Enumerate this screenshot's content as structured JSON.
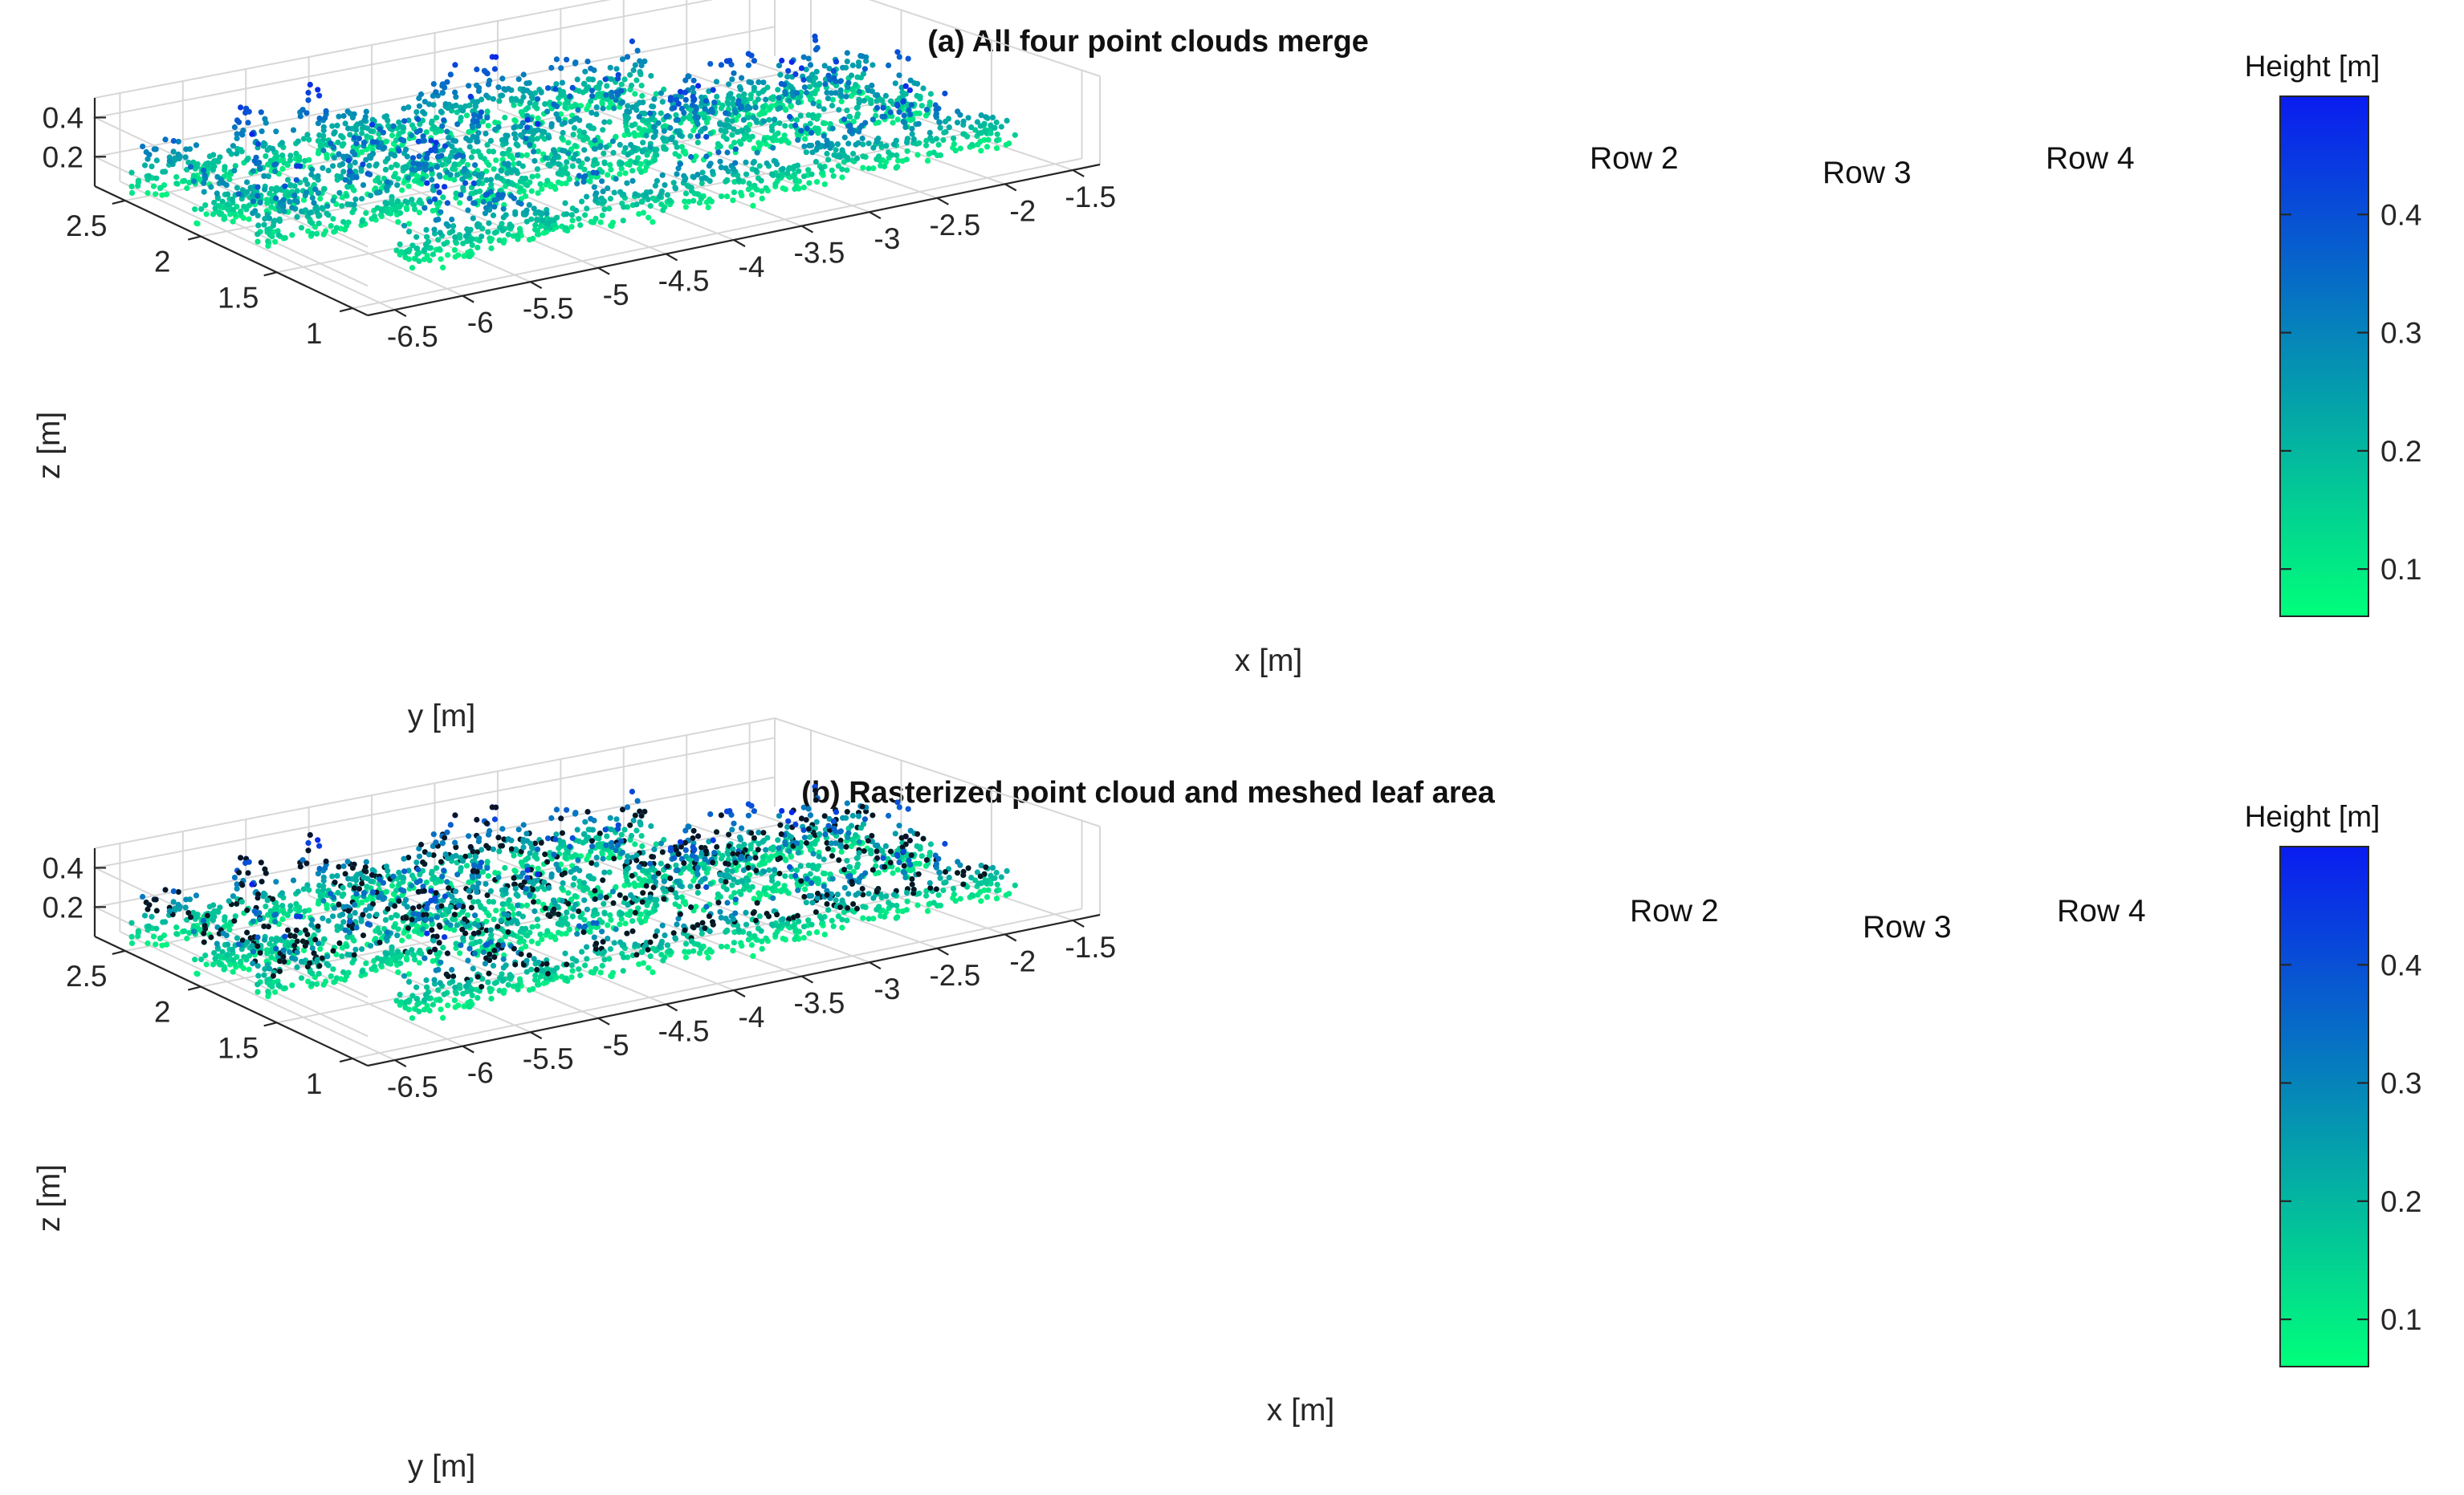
{
  "chart_data": [
    {
      "type": "scatter",
      "title": "(a) All four point clouds merge",
      "xlabel": "x [m]",
      "ylabel": "y [m]",
      "zlabel": "z [m]",
      "xlim": [
        -6.7,
        -1.3
      ],
      "ylim": [
        0.9,
        2.7
      ],
      "zlim": [
        0.05,
        0.5
      ],
      "x_ticks": [
        "-6.5",
        "-6",
        "-5.5",
        "-5",
        "-4.5",
        "-4",
        "-3.5",
        "-3",
        "-2.5",
        "-2",
        "-1.5"
      ],
      "y_ticks": [
        "2.5",
        "2",
        "1.5",
        "1"
      ],
      "z_ticks": [
        "0.2",
        "0.4"
      ],
      "annotations": [
        "Row 2",
        "Row 3",
        "Row 4"
      ],
      "colorbar": {
        "title": "Height [m]",
        "ticks": [
          "0.1",
          "0.2",
          "0.3",
          "0.4"
        ],
        "range": [
          0.06,
          0.5
        ],
        "colors": [
          "#00ff7a",
          "#0a1cf0"
        ]
      },
      "grid": true,
      "mesh": false
    },
    {
      "type": "scatter",
      "title": "(b) Rasterized point cloud and meshed leaf area",
      "xlabel": "x [m]",
      "ylabel": "y [m]",
      "zlabel": "z [m]",
      "xlim": [
        -6.7,
        -1.3
      ],
      "ylim": [
        0.9,
        2.7
      ],
      "zlim": [
        0.05,
        0.5
      ],
      "x_ticks": [
        "-6.5",
        "-6",
        "-5.5",
        "-5",
        "-4.5",
        "-4",
        "-3.5",
        "-3",
        "-2.5",
        "-2",
        "-1.5"
      ],
      "y_ticks": [
        "2.5",
        "2",
        "1.5",
        "1"
      ],
      "z_ticks": [
        "0.2",
        "0.4"
      ],
      "annotations": [
        "Row 2",
        "Row 3",
        "Row 4"
      ],
      "colorbar": {
        "title": "Height [m]",
        "ticks": [
          "0.1",
          "0.2",
          "0.3",
          "0.4"
        ],
        "range": [
          0.06,
          0.5
        ],
        "colors": [
          "#00ff7a",
          "#0a1cf0"
        ]
      },
      "grid": true,
      "mesh": true
    }
  ]
}
